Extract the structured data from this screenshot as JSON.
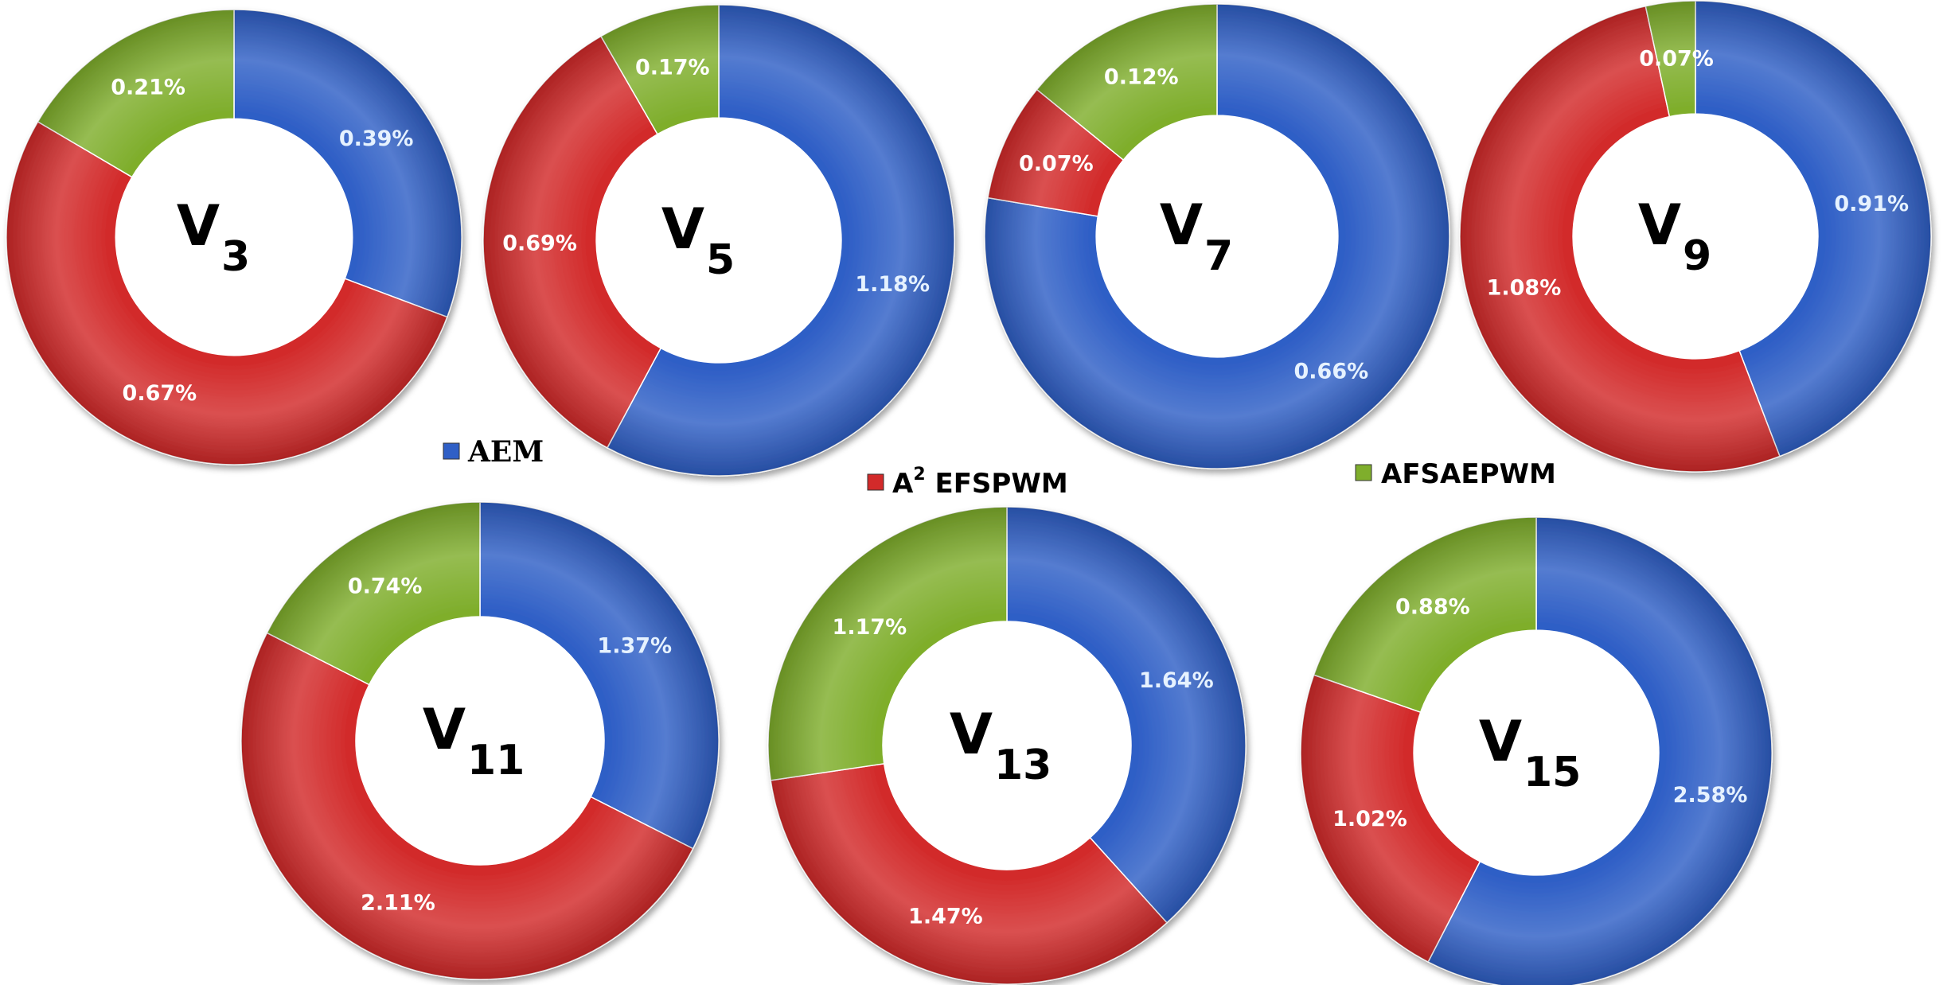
{
  "colors": {
    "AEM": "#2f5fc6",
    "A2EFSPWM": "#d22a2a",
    "AFSAEPWM": "#7fae2c",
    "label_on_blue": "#e6f2ff",
    "label_on_other": "#ffffff"
  },
  "legend": [
    {
      "key": "AEM",
      "label": "AEM"
    },
    {
      "key": "A2EFSPWM",
      "prefix": "A",
      "sup": "2",
      "label": " EFSPWM"
    },
    {
      "key": "AFSAEPWM",
      "label": "AFSAEPWM"
    }
  ],
  "chart_data": [
    {
      "type": "pie",
      "center_label": "V",
      "center_sub": "3",
      "series": [
        {
          "name": "AEM",
          "value": 0.39,
          "label": "0.39%"
        },
        {
          "name": "A2EFSPWM",
          "value": 0.67,
          "label": "0.67%"
        },
        {
          "name": "AFSAEPWM",
          "value": 0.21,
          "label": "0.21%"
        }
      ]
    },
    {
      "type": "pie",
      "center_label": "V",
      "center_sub": "5",
      "series": [
        {
          "name": "AEM",
          "value": 1.18,
          "label": "1.18%"
        },
        {
          "name": "A2EFSPWM",
          "value": 0.69,
          "label": "0.69%"
        },
        {
          "name": "AFSAEPWM",
          "value": 0.17,
          "label": "0.17%"
        }
      ]
    },
    {
      "type": "pie",
      "center_label": "V",
      "center_sub": "7",
      "series": [
        {
          "name": "AEM",
          "value": 0.66,
          "label": "0.66%"
        },
        {
          "name": "A2EFSPWM",
          "value": 0.07,
          "label": "0.07%"
        },
        {
          "name": "AFSAEPWM",
          "value": 0.12,
          "label": "0.12%"
        }
      ]
    },
    {
      "type": "pie",
      "center_label": "V",
      "center_sub": "9",
      "series": [
        {
          "name": "AEM",
          "value": 0.91,
          "label": "0.91%"
        },
        {
          "name": "A2EFSPWM",
          "value": 1.08,
          "label": "1.08%"
        },
        {
          "name": "AFSAEPWM",
          "value": 0.07,
          "label": "0.07%"
        }
      ]
    },
    {
      "type": "pie",
      "center_label": "V",
      "center_sub": "11",
      "series": [
        {
          "name": "AEM",
          "value": 1.37,
          "label": "1.37%"
        },
        {
          "name": "A2EFSPWM",
          "value": 2.11,
          "label": "2.11%"
        },
        {
          "name": "AFSAEPWM",
          "value": 0.74,
          "label": "0.74%"
        }
      ]
    },
    {
      "type": "pie",
      "center_label": "V",
      "center_sub": "13",
      "series": [
        {
          "name": "AEM",
          "value": 1.64,
          "label": "1.64%"
        },
        {
          "name": "A2EFSPWM",
          "value": 1.47,
          "label": "1.47%"
        },
        {
          "name": "AFSAEPWM",
          "value": 1.17,
          "label": "1.17%"
        }
      ]
    },
    {
      "type": "pie",
      "center_label": "V",
      "center_sub": "15",
      "series": [
        {
          "name": "AEM",
          "value": 2.58,
          "label": "2.58%"
        },
        {
          "name": "A2EFSPWM",
          "value": 1.02,
          "label": "1.02%"
        },
        {
          "name": "AFSAEPWM",
          "value": 0.88,
          "label": "0.88%"
        }
      ]
    }
  ]
}
